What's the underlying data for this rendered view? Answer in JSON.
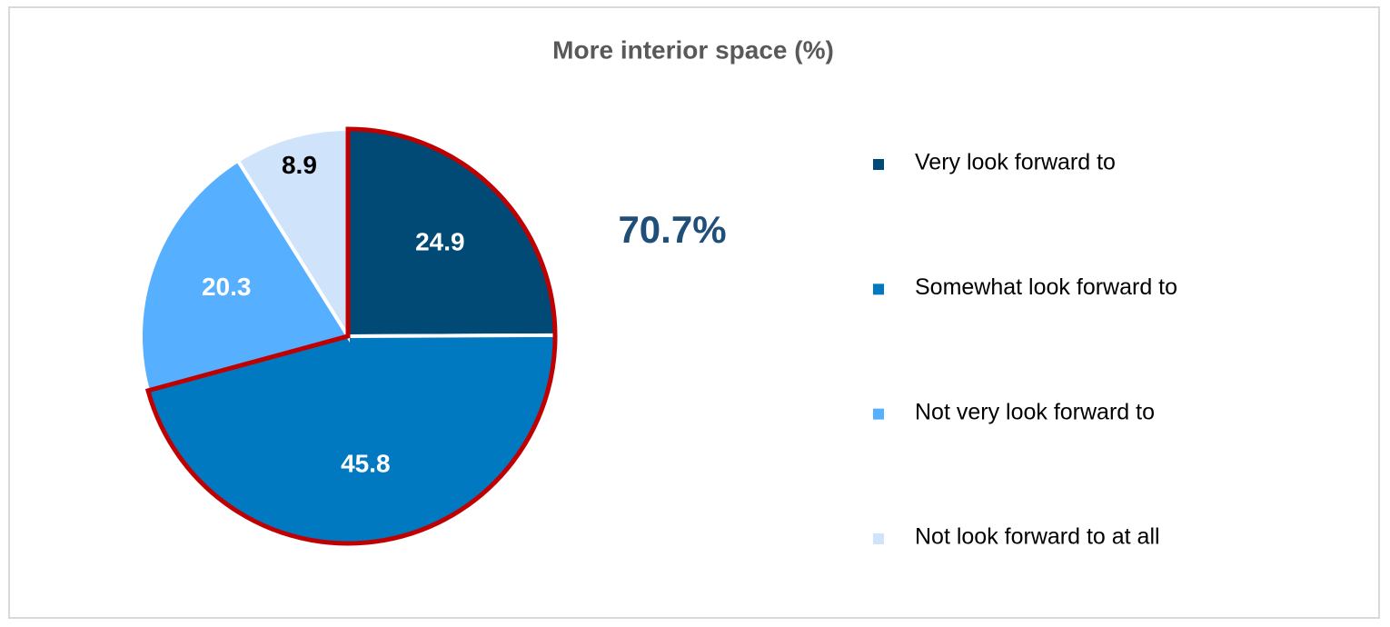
{
  "chart_data": {
    "type": "pie",
    "title": "More interior space (%)",
    "categories": [
      "Very look forward to",
      "Somewhat look forward to",
      "Not very look forward to",
      "Not look forward to at all"
    ],
    "values": [
      24.9,
      45.8,
      20.3,
      8.9
    ],
    "colors": [
      "#004a75",
      "#0079c1",
      "#56b0ff",
      "#cfe4fb"
    ],
    "label_colors": [
      "#ffffff",
      "#ffffff",
      "#ffffff",
      "#000000"
    ],
    "annotation": "70.7%",
    "highlight_color": "#c00000",
    "legend": "right"
  }
}
